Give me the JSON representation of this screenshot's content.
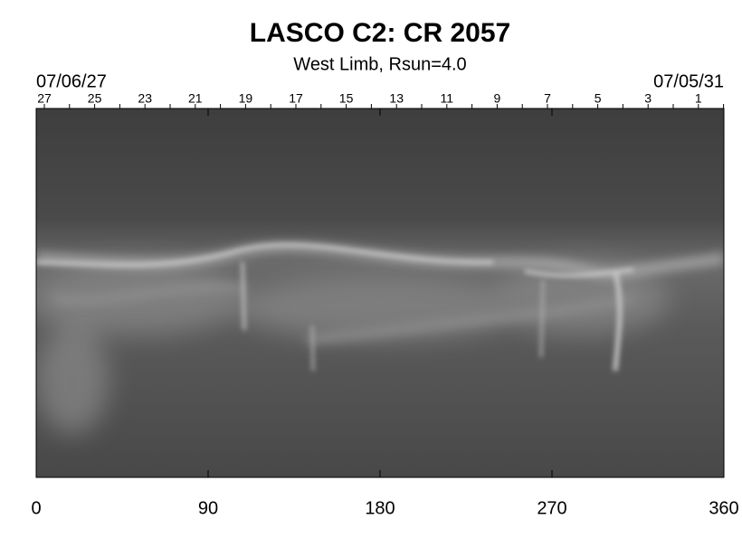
{
  "chart_data": {
    "type": "image",
    "title": "LASCO C2: CR 2057",
    "subtitle": "West Limb, Rsun=4.0",
    "start_date": "07/06/27",
    "end_date": "07/05/31",
    "top_labels": [
      "27",
      "25",
      "23",
      "21",
      "19",
      "17",
      "15",
      "13",
      "11",
      "9",
      "7",
      "5",
      "3",
      "1"
    ],
    "xlim": [
      0,
      360
    ],
    "xticks": [
      0,
      90,
      180,
      270,
      360
    ]
  }
}
